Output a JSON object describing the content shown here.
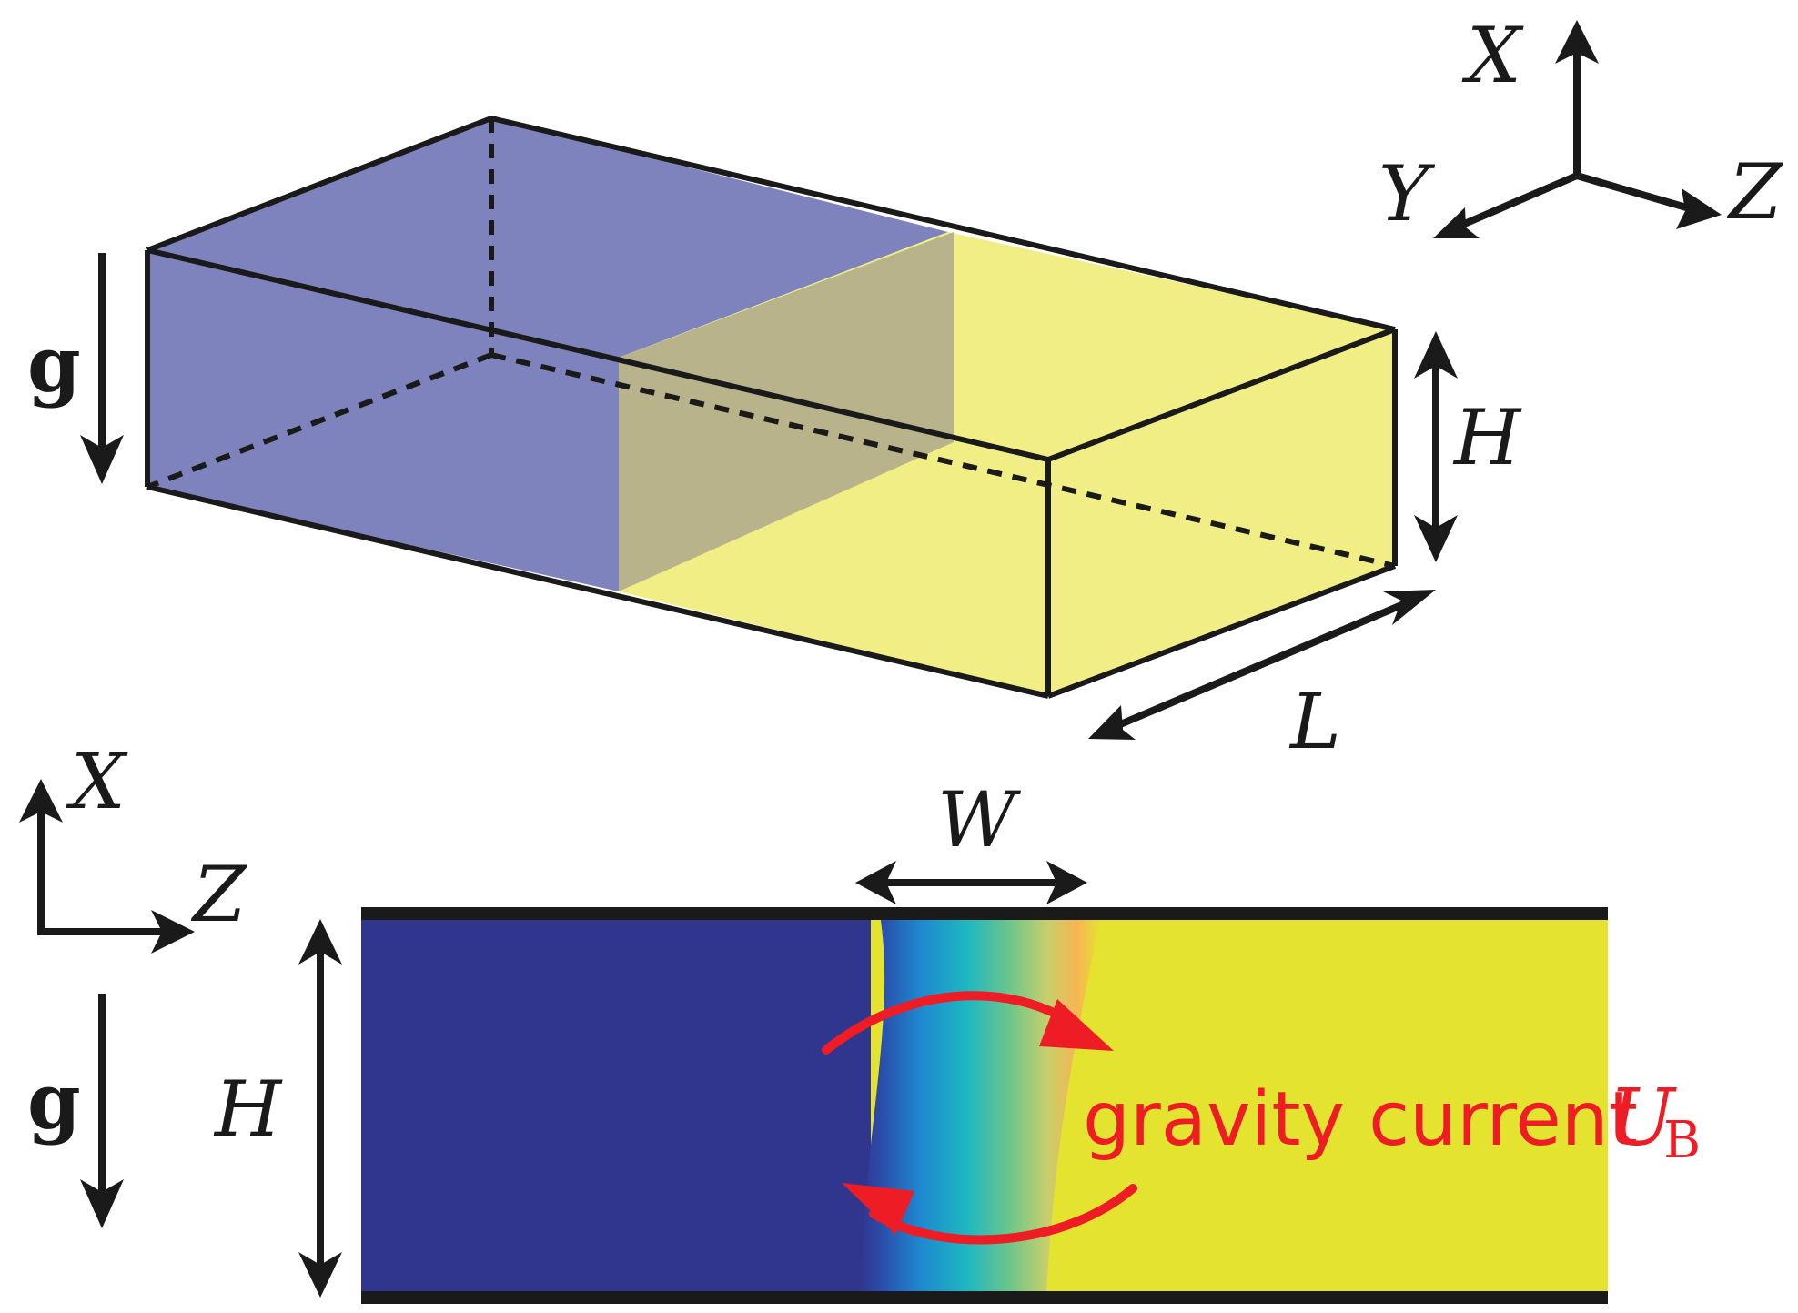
{
  "colors": {
    "light_fluid": "#7f83bd",
    "heavy_fluid": "#f0ee84",
    "overlap": "#b8b38a",
    "current_arrow": "#ee1c24",
    "outline": "#1a1a1a",
    "slice_blue": "#30368e",
    "slice_yellow": "#e4e330"
  },
  "top_view": {
    "axes": {
      "x": "X",
      "y": "Y",
      "z": "Z"
    },
    "gravity_label": "g",
    "height_label": "H",
    "length_label": "L"
  },
  "bottom_view": {
    "axes": {
      "x": "X",
      "z": "Z"
    },
    "gravity_label": "g",
    "height_label": "H",
    "width_label": "W",
    "current_text": "gravity current",
    "velocity_symbol": "U",
    "velocity_subscript": "B"
  }
}
